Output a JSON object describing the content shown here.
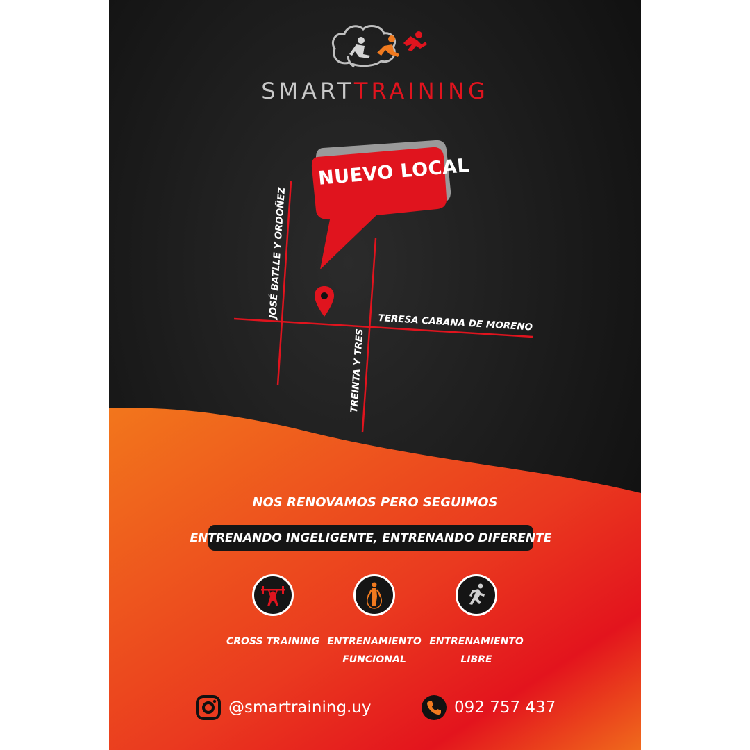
{
  "brand": {
    "name_part1": "SMART",
    "name_part2": "TRAINING",
    "logo_icon": "brain-runners-logo",
    "colors": {
      "gray": "#c9c9c9",
      "red": "#e0141e",
      "orange": "#f07a1f"
    }
  },
  "map": {
    "bubble_text": "NUEVO LOCAL",
    "marker_icon": "location-pin-icon",
    "streets": {
      "vertical_left": "JOSÉ BATLLE Y ORDOÑEZ",
      "horizontal": "TERESA CABANA DE MORENO",
      "vertical_right": "TREINTA Y TRES"
    }
  },
  "tagline": "NOS RENOVAMOS PERO SEGUIMOS",
  "banner": "ENTRENANDO INGELIGENTE, ENTRENANDO DIFERENTE",
  "services": [
    {
      "icon": "weightlifter-icon",
      "label": "CROSS TRAINING"
    },
    {
      "icon": "jump-rope-icon",
      "label": "ENTRENAMIENTO\nFUNCIONAL"
    },
    {
      "icon": "runner-icon",
      "label": "ENTRENAMIENTO\nLIBRE"
    }
  ],
  "contact": {
    "instagram_icon": "instagram-icon",
    "instagram": "@smartraining.uy",
    "phone_icon": "phone-icon",
    "phone": "092 757 437"
  }
}
